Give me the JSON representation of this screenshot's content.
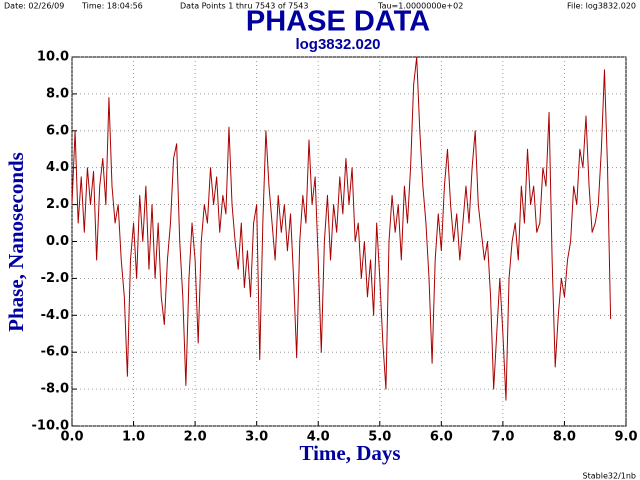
{
  "header": {
    "date": "Date: 02/26/09",
    "time": "Time: 18:04:56",
    "points": "Data Points 1 thru 7543 of 7543",
    "tau": "Tau=1.0000000e+02",
    "file": "File: log3832.020"
  },
  "footer": "Stable32/1nb",
  "chart_data": {
    "type": "line",
    "title": "PHASE DATA",
    "subtitle": "log3832.020",
    "xlabel": "Time, Days",
    "ylabel": "Phase, Nanoseconds",
    "grid": true,
    "xlim": [
      0,
      9
    ],
    "ylim": [
      -10,
      10
    ],
    "xticks": [
      {
        "value": 0,
        "label": "0.0"
      },
      {
        "value": 1,
        "label": "1.0"
      },
      {
        "value": 2,
        "label": "2.0"
      },
      {
        "value": 3,
        "label": "3.0"
      },
      {
        "value": 4,
        "label": "4.0"
      },
      {
        "value": 5,
        "label": "5.0"
      },
      {
        "value": 6,
        "label": "6.0"
      },
      {
        "value": 7,
        "label": "7.0"
      },
      {
        "value": 8,
        "label": "8.0"
      },
      {
        "value": 9,
        "label": "9.0"
      }
    ],
    "yticks": [
      {
        "value": -10,
        "label": "-10.0"
      },
      {
        "value": -8,
        "label": "-8.0"
      },
      {
        "value": -6,
        "label": "-6.0"
      },
      {
        "value": -4,
        "label": "-4.0"
      },
      {
        "value": -2,
        "label": "-2.0"
      },
      {
        "value": 0,
        "label": "0.0"
      },
      {
        "value": 2,
        "label": "2.0"
      },
      {
        "value": 4,
        "label": "4.0"
      },
      {
        "value": 6,
        "label": "6.0"
      },
      {
        "value": 8,
        "label": "8.0"
      },
      {
        "value": 10,
        "label": "10.0"
      }
    ],
    "x": [
      0.0,
      0.05,
      0.1,
      0.15,
      0.2,
      0.25,
      0.3,
      0.35,
      0.4,
      0.45,
      0.5,
      0.55,
      0.6,
      0.65,
      0.7,
      0.75,
      0.8,
      0.85,
      0.9,
      0.95,
      1.0,
      1.05,
      1.1,
      1.15,
      1.2,
      1.25,
      1.3,
      1.35,
      1.4,
      1.45,
      1.5,
      1.55,
      1.6,
      1.65,
      1.7,
      1.75,
      1.8,
      1.85,
      1.9,
      1.95,
      2.0,
      2.05,
      2.1,
      2.15,
      2.2,
      2.25,
      2.3,
      2.35,
      2.4,
      2.45,
      2.5,
      2.55,
      2.6,
      2.65,
      2.7,
      2.75,
      2.8,
      2.85,
      2.9,
      2.95,
      3.0,
      3.05,
      3.1,
      3.15,
      3.2,
      3.25,
      3.3,
      3.35,
      3.4,
      3.45,
      3.5,
      3.55,
      3.6,
      3.65,
      3.7,
      3.75,
      3.8,
      3.85,
      3.9,
      3.95,
      4.0,
      4.05,
      4.1,
      4.15,
      4.2,
      4.25,
      4.3,
      4.35,
      4.4,
      4.45,
      4.5,
      4.55,
      4.6,
      4.65,
      4.7,
      4.75,
      4.8,
      4.85,
      4.9,
      4.95,
      5.0,
      5.05,
      5.1,
      5.15,
      5.2,
      5.25,
      5.3,
      5.35,
      5.4,
      5.45,
      5.5,
      5.55,
      5.6,
      5.65,
      5.7,
      5.75,
      5.8,
      5.85,
      5.9,
      5.95,
      6.0,
      6.05,
      6.1,
      6.15,
      6.2,
      6.25,
      6.3,
      6.35,
      6.4,
      6.45,
      6.5,
      6.55,
      6.6,
      6.65,
      6.7,
      6.75,
      6.8,
      6.85,
      6.9,
      6.95,
      7.0,
      7.05,
      7.1,
      7.15,
      7.2,
      7.25,
      7.3,
      7.35,
      7.4,
      7.45,
      7.5,
      7.55,
      7.6,
      7.65,
      7.7,
      7.75,
      7.8,
      7.85,
      7.9,
      7.95,
      8.0,
      8.05,
      8.1,
      8.15,
      8.2,
      8.25,
      8.3,
      8.35,
      8.4,
      8.45,
      8.5,
      8.55,
      8.6,
      8.65,
      8.7,
      8.75
    ],
    "series": [
      {
        "name": "Phase",
        "color": "#aa0000",
        "values": [
          2.0,
          6.0,
          1.0,
          3.5,
          0.5,
          4.0,
          2.0,
          3.8,
          -1.0,
          3.0,
          4.5,
          2.0,
          7.8,
          3.0,
          1.0,
          2.0,
          -1.0,
          -3.0,
          -7.3,
          -1.0,
          1.0,
          -2.0,
          2.5,
          0.0,
          3.0,
          -1.5,
          2.0,
          -2.0,
          1.0,
          -3.0,
          -4.5,
          -1.0,
          1.0,
          4.5,
          5.3,
          0.0,
          -3.0,
          -7.8,
          -2.0,
          1.0,
          -1.0,
          -5.5,
          0.0,
          2.0,
          1.0,
          4.0,
          2.0,
          3.5,
          0.5,
          2.5,
          1.5,
          6.2,
          2.0,
          0.0,
          -1.5,
          1.0,
          -2.5,
          -0.5,
          -3.0,
          1.0,
          2.0,
          -6.4,
          1.0,
          6.0,
          3.0,
          1.0,
          -1.0,
          2.5,
          0.5,
          2.0,
          -0.5,
          1.5,
          -2.0,
          -6.3,
          0.0,
          2.5,
          1.0,
          5.5,
          2.0,
          3.5,
          -1.0,
          -6.0,
          0.0,
          2.5,
          -1.0,
          2.0,
          0.5,
          3.5,
          1.5,
          4.5,
          2.0,
          4.0,
          0.0,
          1.0,
          -2.0,
          0.0,
          -3.0,
          -1.0,
          -4.0,
          1.0,
          -2.0,
          -5.5,
          -8.0,
          0.0,
          2.5,
          0.5,
          2.0,
          -1.0,
          3.0,
          1.0,
          4.0,
          8.5,
          10.0,
          6.0,
          3.0,
          1.0,
          -2.0,
          -6.6,
          -1.0,
          1.5,
          -0.5,
          3.0,
          5.0,
          2.0,
          0.0,
          1.5,
          -1.0,
          1.0,
          3.0,
          1.0,
          4.0,
          6.0,
          2.0,
          0.5,
          -1.0,
          0.0,
          -3.0,
          -8.0,
          -5.0,
          -2.0,
          -5.0,
          -8.6,
          -2.0,
          0.0,
          1.0,
          -1.0,
          3.0,
          1.0,
          5.0,
          2.0,
          3.0,
          0.5,
          1.0,
          4.0,
          3.0,
          7.0,
          -1.0,
          -6.8,
          -4.0,
          -2.0,
          -3.0,
          -1.0,
          0.0,
          3.0,
          2.0,
          5.0,
          4.0,
          6.8,
          3.0,
          0.5,
          1.0,
          2.0,
          5.0,
          9.3,
          4.0,
          -4.2
        ]
      }
    ]
  }
}
